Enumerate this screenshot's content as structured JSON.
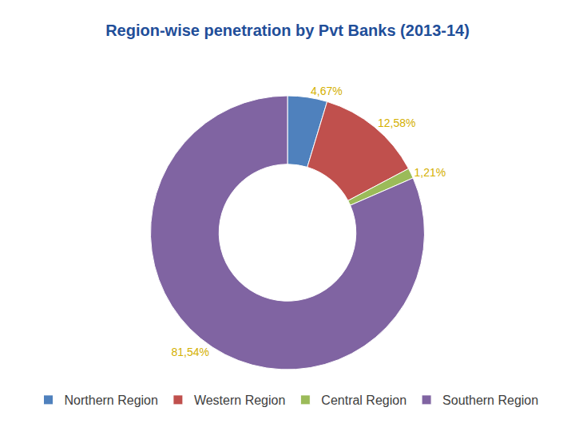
{
  "chart_data": {
    "type": "pie",
    "title": "Region-wise penetration by Pvt Banks (2013-14)",
    "categories": [
      "Northern Region",
      "Western Region",
      "Central Region",
      "Southern Region"
    ],
    "values": [
      4.67,
      12.58,
      1.21,
      81.54
    ],
    "value_labels": [
      "4,67%",
      "12,58%",
      "1,21%",
      "81,54%"
    ],
    "colors": [
      "#4f81bd",
      "#c0504d",
      "#9bbb59",
      "#8064a2"
    ],
    "data_labels": true,
    "legend": "bottom"
  }
}
